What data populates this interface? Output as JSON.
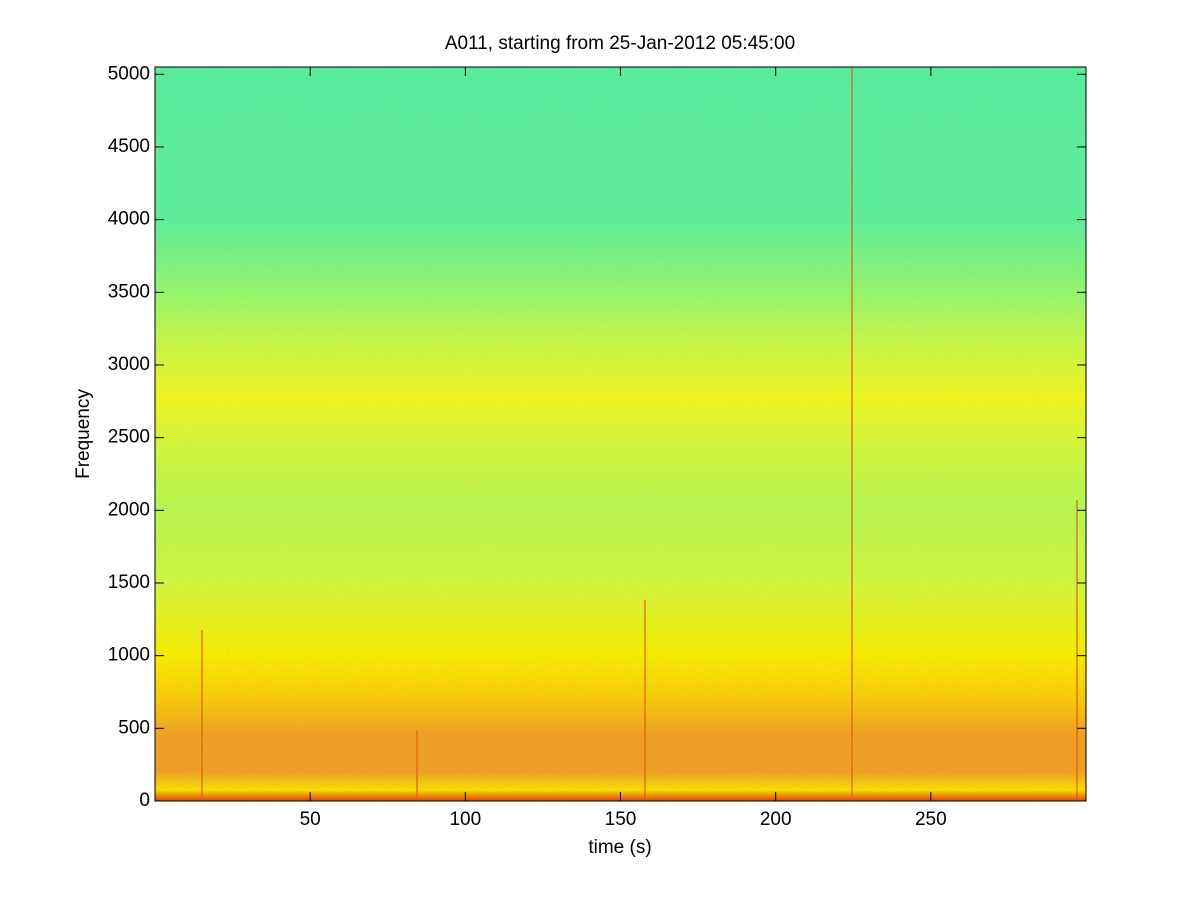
{
  "chart_data": {
    "type": "spectrogram",
    "title": "A011, starting from 25-Jan-2012 05:45:00",
    "x_label": "time (s)",
    "y_label": "Frequency",
    "xlim": [
      0,
      300
    ],
    "ylim": [
      0,
      5050
    ],
    "xticks": [
      50,
      100,
      150,
      200,
      250
    ],
    "yticks": [
      0,
      500,
      1000,
      1500,
      2000,
      2500,
      3000,
      3500,
      4000,
      4500,
      5000
    ]
  }
}
